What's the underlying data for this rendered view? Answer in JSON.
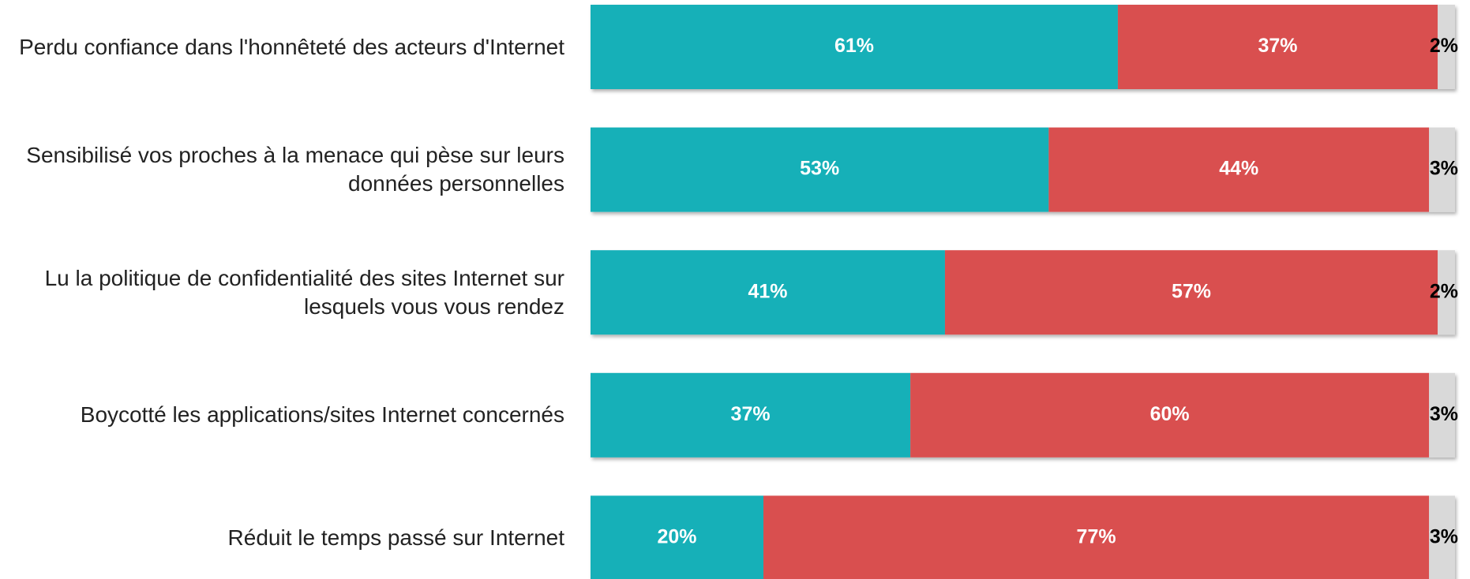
{
  "chart_data": {
    "type": "stacked-barh",
    "categories": [
      "Perdu confiance dans l'honnêteté des acteurs d'Internet",
      "Sensibilisé vos proches à la menace qui pèse sur leurs données personnelles",
      "Lu la politique de confidentialité des sites Internet sur lesquels vous vous rendez",
      "Boycotté les applications/sites Internet concernés",
      "Réduit le temps passé sur Internet"
    ],
    "series": [
      {
        "color": "#14b0b8",
        "values": [
          61,
          53,
          41,
          37,
          20
        ],
        "value_labels": [
          "61%",
          "53%",
          "41%",
          "37%",
          "20%"
        ]
      },
      {
        "color": "#d94f50",
        "values": [
          37,
          44,
          57,
          60,
          77
        ],
        "value_labels": [
          "37%",
          "44%",
          "57%",
          "60%",
          "77%"
        ]
      },
      {
        "color": "#d9d9d9",
        "values": [
          2,
          3,
          2,
          3,
          3
        ],
        "value_labels": [
          "2%",
          "3%",
          "2%",
          "3%",
          "3%"
        ]
      }
    ],
    "xlim": [
      0,
      100
    ]
  }
}
